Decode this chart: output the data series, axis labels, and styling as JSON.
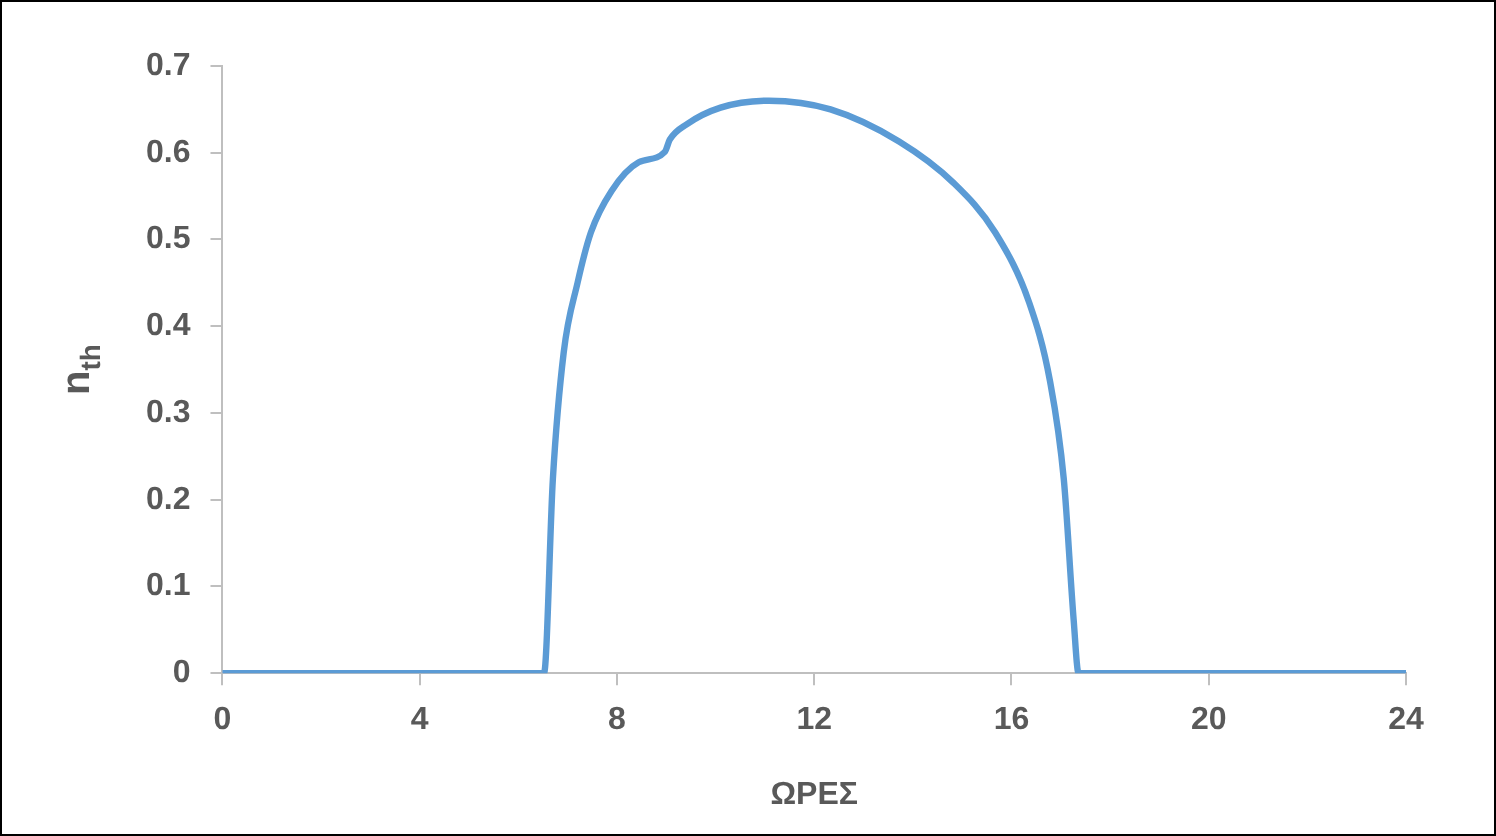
{
  "chart_data": {
    "type": "line",
    "xlabel": "ΩΡΕΣ",
    "ylabel": "n$_{th}$",
    "x": [
      0,
      6.52,
      6.7,
      6.92,
      7.2,
      7.47,
      7.89,
      8.44,
      8.97,
      9.07,
      9.42,
      10.1,
      11.08,
      12.33,
      13.72,
      14.83,
      15.67,
      16.36,
      16.78,
      17.06,
      17.26,
      17.36,
      24
    ],
    "series": [
      {
        "color": "#5b9bd5",
        "values": [
          0,
          0,
          0.224,
          0.37,
          0.45,
          0.508,
          0.556,
          0.589,
          0.601,
          0.615,
          0.633,
          0.652,
          0.66,
          0.65,
          0.613,
          0.565,
          0.508,
          0.427,
          0.337,
          0.224,
          0.062,
          0,
          0
        ]
      }
    ],
    "xlim": [
      0,
      24
    ],
    "xticks": [
      0,
      4,
      8,
      12,
      16,
      20,
      24
    ],
    "ylim": [
      0,
      0.7
    ],
    "yticks": [
      0,
      0.1,
      0.2,
      0.3,
      0.4,
      0.5,
      0.6,
      0.7
    ],
    "grid": false,
    "legend": false,
    "marker": "none",
    "line_style": "solid"
  }
}
